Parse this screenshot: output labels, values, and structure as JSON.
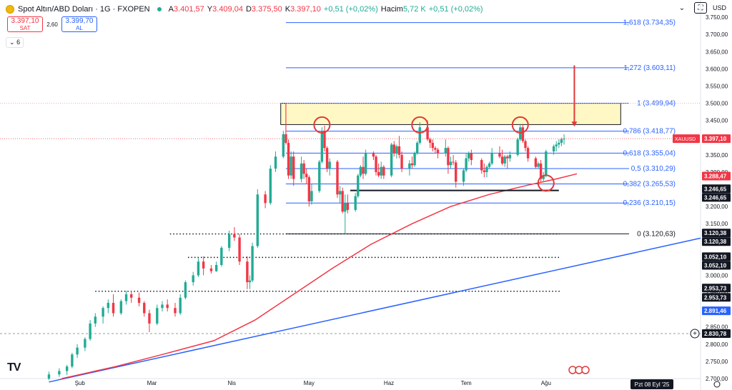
{
  "header": {
    "symbol": "Spot Altın/ABD Doları · 1G · FXOPEN",
    "open_label": "A",
    "open": "3.401,57",
    "high_label": "Y",
    "high": "3.409,04",
    "low_label": "D",
    "low": "3.375,50",
    "close_label": "K",
    "close": "3.397,10",
    "change": "+0,51 (+0,02%)",
    "volume_label": "Hacim",
    "volume": "5,72 K",
    "volume_change": "+0,51 (+0,02%)"
  },
  "trade": {
    "sell_price": "3.397,10",
    "sell_label": "SAT",
    "spread": "2,60",
    "buy_price": "3.399,70",
    "buy_label": "AL"
  },
  "indicators_count": "6",
  "currency": "USD",
  "colors": {
    "up": "#22ab94",
    "down": "#f23645",
    "fib": "#2962ff",
    "ma": "#f23645",
    "trendline": "#2962ff",
    "zone_fill": "#fff8c4"
  },
  "icons": [
    "chevron-down-icon",
    "fullscreen-icon"
  ],
  "chart_data": {
    "type": "candlestick",
    "ylim": [
      2700,
      3800
    ],
    "y_ticks": [
      "3.750,00",
      "3.700,00",
      "3.650,00",
      "3.600,00",
      "3.550,00",
      "3.500,00",
      "3.450,00",
      "3.400,00",
      "3.350,00",
      "3.300,00",
      "3.250,00",
      "3.200,00",
      "3.150,00",
      "3.100,00",
      "3.050,00",
      "3.000,00",
      "2.950,00",
      "2.900,00",
      "2.850,00",
      "2.800,00",
      "2.750,00",
      "2.700,00"
    ],
    "y_tick_values": [
      3750,
      3700,
      3650,
      3600,
      3550,
      3500,
      3450,
      3400,
      3350,
      3300,
      3250,
      3200,
      3150,
      3100,
      3050,
      3000,
      2950,
      2900,
      2850,
      2800,
      2750,
      2700
    ],
    "x_ticks": [
      {
        "label": "Şub",
        "date": "2025-02-01"
      },
      {
        "label": "Mar",
        "date": "2025-03-01"
      },
      {
        "label": "Nis",
        "date": "2025-04-01"
      },
      {
        "label": "May",
        "date": "2025-05-01"
      },
      {
        "label": "Haz",
        "date": "2025-06-01"
      },
      {
        "label": "Tem",
        "date": "2025-07-01"
      },
      {
        "label": "Ağu",
        "date": "2025-08-01"
      }
    ],
    "x_range": [
      "2025-01-01",
      "2025-09-30"
    ],
    "crosshair_date_label": "Pzt 08 Eyl '25",
    "candles": [
      [
        "2025-01-20",
        2700,
        2720,
        2695,
        2712
      ],
      [
        "2025-01-24",
        2712,
        2730,
        2705,
        2722
      ],
      [
        "2025-01-27",
        2722,
        2740,
        2710,
        2735
      ],
      [
        "2025-01-29",
        2735,
        2775,
        2730,
        2770
      ],
      [
        "2025-01-31",
        2770,
        2800,
        2760,
        2790
      ],
      [
        "2025-02-03",
        2790,
        2820,
        2780,
        2815
      ],
      [
        "2025-02-05",
        2815,
        2870,
        2810,
        2860
      ],
      [
        "2025-02-07",
        2860,
        2890,
        2850,
        2880
      ],
      [
        "2025-02-10",
        2880,
        2910,
        2860,
        2905
      ],
      [
        "2025-02-12",
        2905,
        2930,
        2890,
        2920
      ],
      [
        "2025-02-14",
        2920,
        2945,
        2880,
        2890
      ],
      [
        "2025-02-17",
        2890,
        2930,
        2885,
        2925
      ],
      [
        "2025-02-19",
        2925,
        2955,
        2915,
        2945
      ],
      [
        "2025-02-21",
        2945,
        2955,
        2920,
        2935
      ],
      [
        "2025-02-24",
        2935,
        2950,
        2910,
        2920
      ],
      [
        "2025-02-26",
        2920,
        2925,
        2880,
        2890
      ],
      [
        "2025-02-28",
        2890,
        2900,
        2835,
        2860
      ],
      [
        "2025-03-03",
        2860,
        2915,
        2855,
        2905
      ],
      [
        "2025-03-05",
        2905,
        2925,
        2895,
        2915
      ],
      [
        "2025-03-07",
        2915,
        2930,
        2895,
        2905
      ],
      [
        "2025-03-10",
        2905,
        2920,
        2880,
        2890
      ],
      [
        "2025-03-12",
        2890,
        2945,
        2885,
        2935
      ],
      [
        "2025-03-14",
        2935,
        2985,
        2930,
        2980
      ],
      [
        "2025-03-17",
        2980,
        3010,
        2970,
        3000
      ],
      [
        "2025-03-19",
        3000,
        3050,
        2995,
        3040
      ],
      [
        "2025-03-21",
        3040,
        3055,
        3000,
        3020
      ],
      [
        "2025-03-24",
        3020,
        3030,
        3005,
        3012
      ],
      [
        "2025-03-26",
        3012,
        3040,
        3010,
        3030
      ],
      [
        "2025-03-28",
        3030,
        3085,
        3025,
        3080
      ],
      [
        "2025-03-31",
        3080,
        3130,
        3070,
        3120
      ],
      [
        "2025-04-02",
        3120,
        3140,
        3100,
        3110
      ],
      [
        "2025-04-04",
        3110,
        3120,
        3030,
        3040
      ],
      [
        "2025-04-07",
        3040,
        3055,
        2960,
        2980
      ],
      [
        "2025-04-08",
        2980,
        3000,
        2960,
        2985
      ],
      [
        "2025-04-09",
        2985,
        3095,
        2980,
        3085
      ],
      [
        "2025-04-11",
        3085,
        3250,
        3080,
        3235
      ],
      [
        "2025-04-14",
        3235,
        3245,
        3195,
        3210
      ],
      [
        "2025-04-16",
        3210,
        3320,
        3205,
        3310
      ],
      [
        "2025-04-18",
        3310,
        3360,
        3300,
        3345
      ],
      [
        "2025-04-21",
        3345,
        3420,
        3340,
        3410
      ],
      [
        "2025-04-22",
        3410,
        3500,
        3380,
        3385
      ],
      [
        "2025-04-23",
        3385,
        3395,
        3280,
        3290
      ],
      [
        "2025-04-24",
        3290,
        3360,
        3280,
        3345
      ],
      [
        "2025-04-25",
        3345,
        3360,
        3260,
        3280
      ],
      [
        "2025-04-28",
        3280,
        3345,
        3270,
        3325
      ],
      [
        "2025-04-29",
        3325,
        3335,
        3280,
        3295
      ],
      [
        "2025-04-30",
        3295,
        3310,
        3265,
        3285
      ],
      [
        "2025-05-01",
        3285,
        3290,
        3200,
        3215
      ],
      [
        "2025-05-02",
        3215,
        3265,
        3205,
        3245
      ],
      [
        "2025-05-05",
        3245,
        3335,
        3240,
        3330
      ],
      [
        "2025-05-06",
        3330,
        3430,
        3325,
        3420
      ],
      [
        "2025-05-07",
        3420,
        3435,
        3360,
        3370
      ],
      [
        "2025-05-08",
        3370,
        3375,
        3300,
        3310
      ],
      [
        "2025-05-09",
        3310,
        3340,
        3290,
        3330
      ],
      [
        "2025-05-12",
        3330,
        3335,
        3225,
        3235
      ],
      [
        "2025-05-13",
        3235,
        3260,
        3210,
        3245
      ],
      [
        "2025-05-14",
        3245,
        3255,
        3180,
        3185
      ],
      [
        "2025-05-15",
        3185,
        3235,
        3120,
        3210
      ],
      [
        "2025-05-16",
        3210,
        3235,
        3180,
        3190
      ],
      [
        "2025-05-19",
        3190,
        3240,
        3185,
        3230
      ],
      [
        "2025-05-20",
        3230,
        3295,
        3225,
        3290
      ],
      [
        "2025-05-21",
        3290,
        3320,
        3285,
        3315
      ],
      [
        "2025-05-22",
        3315,
        3345,
        3280,
        3295
      ],
      [
        "2025-05-23",
        3295,
        3365,
        3290,
        3355
      ],
      [
        "2025-05-26",
        3355,
        3360,
        3335,
        3345
      ],
      [
        "2025-05-27",
        3345,
        3350,
        3290,
        3300
      ],
      [
        "2025-05-28",
        3300,
        3325,
        3285,
        3290
      ],
      [
        "2025-05-29",
        3290,
        3330,
        3280,
        3315
      ],
      [
        "2025-05-30",
        3315,
        3320,
        3280,
        3290
      ],
      [
        "2025-06-02",
        3290,
        3385,
        3285,
        3380
      ],
      [
        "2025-06-03",
        3380,
        3390,
        3345,
        3355
      ],
      [
        "2025-06-04",
        3355,
        3380,
        3340,
        3375
      ],
      [
        "2025-06-05",
        3375,
        3405,
        3340,
        3350
      ],
      [
        "2025-06-06",
        3350,
        3360,
        3300,
        3310
      ],
      [
        "2025-06-09",
        3310,
        3335,
        3290,
        3325
      ],
      [
        "2025-06-10",
        3325,
        3345,
        3310,
        3320
      ],
      [
        "2025-06-11",
        3320,
        3360,
        3315,
        3355
      ],
      [
        "2025-06-12",
        3355,
        3390,
        3350,
        3385
      ],
      [
        "2025-06-13",
        3385,
        3445,
        3380,
        3430
      ],
      [
        "2025-06-16",
        3430,
        3450,
        3390,
        3395
      ],
      [
        "2025-06-17",
        3395,
        3400,
        3370,
        3385
      ],
      [
        "2025-06-18",
        3385,
        3395,
        3360,
        3370
      ],
      [
        "2025-06-19",
        3370,
        3375,
        3355,
        3365
      ],
      [
        "2025-06-20",
        3365,
        3370,
        3340,
        3355
      ],
      [
        "2025-06-23",
        3355,
        3395,
        3345,
        3370
      ],
      [
        "2025-06-24",
        3370,
        3375,
        3295,
        3320
      ],
      [
        "2025-06-25",
        3320,
        3345,
        3310,
        3330
      ],
      [
        "2025-06-26",
        3330,
        3350,
        3320,
        3328
      ],
      [
        "2025-06-27",
        3328,
        3335,
        3255,
        3272
      ],
      [
        "2025-06-30",
        3272,
        3310,
        3260,
        3305
      ],
      [
        "2025-07-01",
        3305,
        3355,
        3300,
        3340
      ],
      [
        "2025-07-02",
        3340,
        3360,
        3330,
        3355
      ],
      [
        "2025-07-03",
        3355,
        3365,
        3320,
        3335
      ],
      [
        "2025-07-07",
        3335,
        3340,
        3295,
        3305
      ],
      [
        "2025-07-08",
        3305,
        3325,
        3285,
        3300
      ],
      [
        "2025-07-09",
        3300,
        3320,
        3285,
        3315
      ],
      [
        "2025-07-10",
        3315,
        3330,
        3310,
        3325
      ],
      [
        "2025-07-11",
        3325,
        3370,
        3320,
        3355
      ],
      [
        "2025-07-14",
        3355,
        3375,
        3340,
        3345
      ],
      [
        "2025-07-15",
        3345,
        3365,
        3320,
        3325
      ],
      [
        "2025-07-16",
        3325,
        3350,
        3315,
        3345
      ],
      [
        "2025-07-17",
        3345,
        3350,
        3310,
        3340
      ],
      [
        "2025-07-18",
        3340,
        3360,
        3330,
        3350
      ],
      [
        "2025-07-21",
        3350,
        3400,
        3345,
        3395
      ],
      [
        "2025-07-22",
        3395,
        3440,
        3390,
        3430
      ],
      [
        "2025-07-23",
        3430,
        3440,
        3385,
        3390
      ],
      [
        "2025-07-24",
        3390,
        3395,
        3360,
        3370
      ],
      [
        "2025-07-25",
        3370,
        3375,
        3330,
        3340
      ],
      [
        "2025-07-28",
        3340,
        3345,
        3310,
        3315
      ],
      [
        "2025-07-29",
        3315,
        3330,
        3310,
        3325
      ],
      [
        "2025-07-30",
        3325,
        3335,
        3270,
        3280
      ],
      [
        "2025-07-31",
        3280,
        3300,
        3270,
        3290
      ],
      [
        "2025-08-01",
        3290,
        3365,
        3285,
        3360
      ],
      [
        "2025-08-04",
        3360,
        3380,
        3350,
        3375
      ],
      [
        "2025-08-05",
        3375,
        3390,
        3360,
        3380
      ],
      [
        "2025-08-06",
        3380,
        3395,
        3370,
        3385
      ],
      [
        "2025-08-07",
        3385,
        3400,
        3375,
        3395
      ],
      [
        "2025-08-08",
        3395,
        3410,
        3380,
        3397
      ]
    ],
    "moving_average": [
      [
        "2025-01-25",
        2700
      ],
      [
        "2025-02-15",
        2735
      ],
      [
        "2025-03-05",
        2770
      ],
      [
        "2025-03-25",
        2810
      ],
      [
        "2025-04-10",
        2870
      ],
      [
        "2025-04-25",
        2945
      ],
      [
        "2025-05-10",
        3020
      ],
      [
        "2025-05-25",
        3090
      ],
      [
        "2025-06-10",
        3150
      ],
      [
        "2025-06-25",
        3200
      ],
      [
        "2025-07-10",
        3235
      ],
      [
        "2025-07-25",
        3262
      ],
      [
        "2025-08-05",
        3280
      ],
      [
        "2025-08-13",
        3295
      ]
    ],
    "trendline": [
      [
        "2025-01-20",
        2690
      ],
      [
        "2025-09-30",
        3108
      ]
    ],
    "fib_levels": [
      {
        "label": "1,618 (3.734,35)",
        "value": 3734.35
      },
      {
        "label": "1,272 (3.603,11)",
        "value": 3603.11
      },
      {
        "label": "1 (3.499,94)",
        "value": 3499.94
      },
      {
        "label": "0,786 (3.418,77)",
        "value": 3418.77
      },
      {
        "label": "0,618 (3.355,04)",
        "value": 3355.04
      },
      {
        "label": "0,5 (3.310,29)",
        "value": 3310.29
      },
      {
        "label": "0,382 (3.265,53)",
        "value": 3265.53
      },
      {
        "label": "0,236 (3.210,15)",
        "value": 3210.15
      },
      {
        "label": "0 (3.120,63)",
        "value": 3120.63
      }
    ],
    "fib_start_date": "2025-04-22",
    "resistance_zone": {
      "from_date": "2025-04-20",
      "to_date": "2025-08-30",
      "low": 3438,
      "high": 3500
    },
    "support_line": {
      "from_date": "2025-05-17",
      "to_date": "2025-08-06",
      "value": 3246.65
    },
    "dotted_levels": [
      {
        "value": 3120.38,
        "from_date": "2025-03-08"
      },
      {
        "value": 3052.1,
        "from_date": "2025-03-15"
      },
      {
        "value": 2953.73,
        "from_date": "2025-02-07"
      }
    ],
    "circles": [
      {
        "date": "2025-05-06",
        "value": 3437
      },
      {
        "date": "2025-06-13",
        "value": 3437
      },
      {
        "date": "2025-07-22",
        "value": 3437
      },
      {
        "date": "2025-08-01",
        "value": 3268
      }
    ],
    "arrow": {
      "date": "2025-08-12",
      "from": 3610,
      "to": 3432
    },
    "last_price": {
      "value": 3397.1,
      "label": "3.397,10",
      "symbol": "XAUUSD"
    },
    "price_labels": [
      {
        "label": "3.288,47",
        "value": 3288.47,
        "style": "red"
      },
      {
        "label": "3.246,65",
        "value": 3251.5,
        "style": "black"
      },
      {
        "label": "3.246,65",
        "value": 3226.5,
        "style": "black"
      },
      {
        "label": "3.120,38",
        "value": 3123,
        "style": "black"
      },
      {
        "label": "3.120,38",
        "value": 3098,
        "style": "black"
      },
      {
        "label": "3.052,10",
        "value": 3054,
        "style": "black"
      },
      {
        "label": "3.052,10",
        "value": 3029,
        "style": "black"
      },
      {
        "label": "2.953,73",
        "value": 2963,
        "style": "black"
      },
      {
        "label": "2.953,73",
        "value": 2936,
        "style": "black"
      },
      {
        "label": "2.891,46",
        "value": 2897,
        "style": "blue"
      },
      {
        "label": "2.830,78",
        "value": 2830.78,
        "style": "black"
      }
    ],
    "crosshair_price": 2830.78
  }
}
